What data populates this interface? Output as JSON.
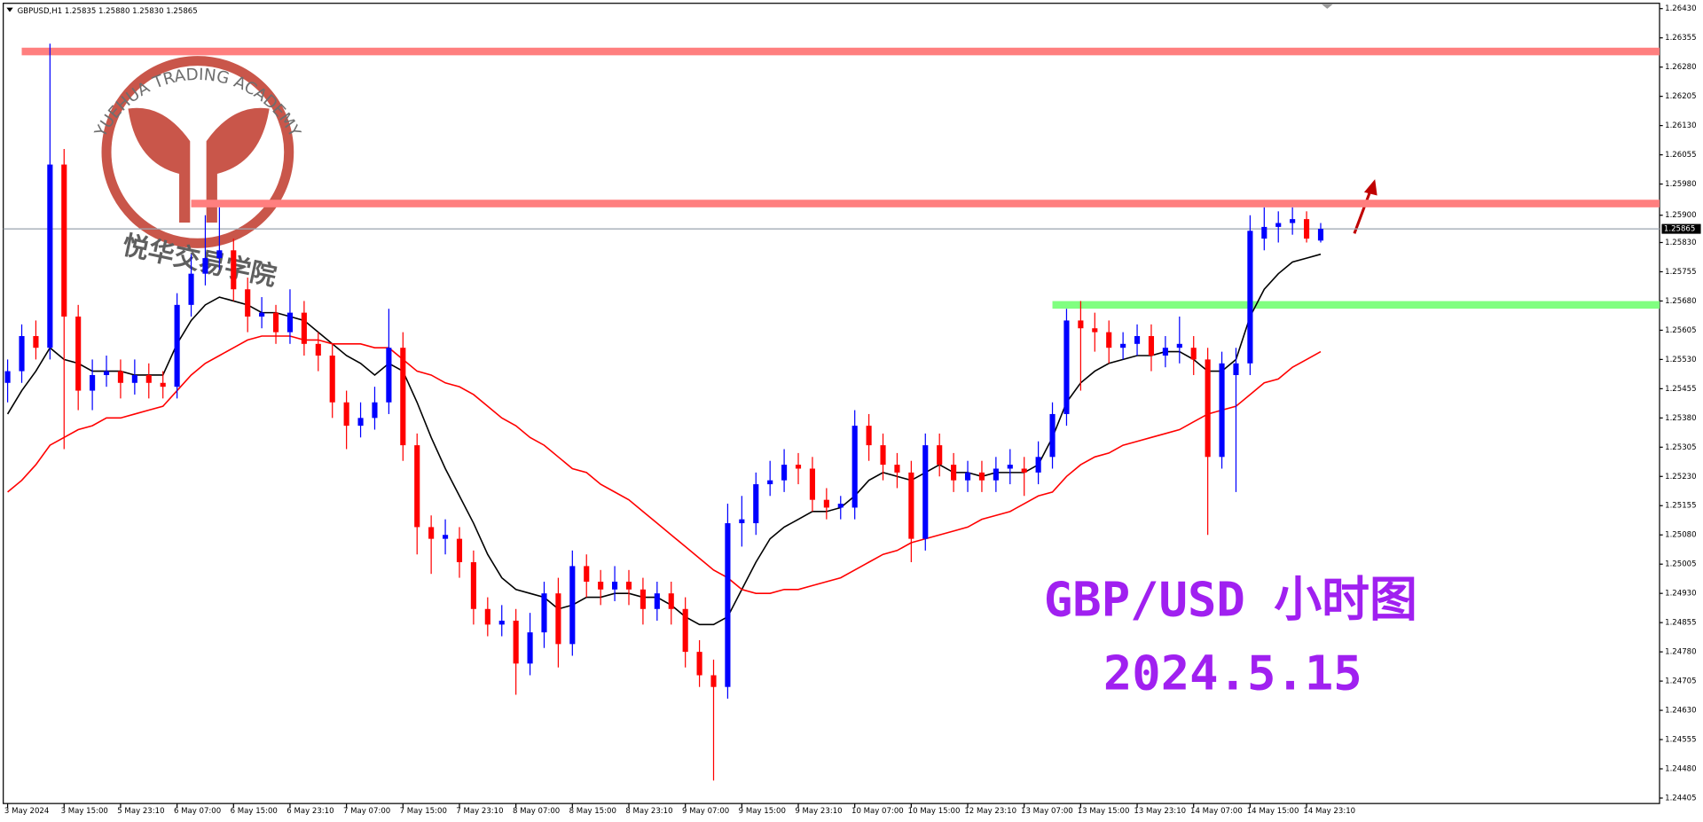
{
  "chart_data": {
    "type": "candlestick",
    "header": "GBPUSD,H1  1.25835 1.25880 1.25830 1.25865",
    "bull_color": "#0000ff",
    "bear_color": "#ff0000",
    "ohlc": [
      [
        1.2547,
        1.2553,
        1.2542,
        1.255
      ],
      [
        1.255,
        1.2562,
        1.2547,
        1.2559
      ],
      [
        1.2559,
        1.2563,
        1.2553,
        1.2556
      ],
      [
        1.2556,
        1.2634,
        1.2553,
        1.2603
      ],
      [
        1.2603,
        1.2607,
        1.253,
        1.2564
      ],
      [
        1.2564,
        1.2567,
        1.254,
        1.2545
      ],
      [
        1.2545,
        1.2553,
        1.254,
        1.2549
      ],
      [
        1.2549,
        1.2554,
        1.2546,
        1.255
      ],
      [
        1.255,
        1.2553,
        1.2543,
        1.2547
      ],
      [
        1.2547,
        1.2553,
        1.2544,
        1.2549
      ],
      [
        1.2549,
        1.2552,
        1.2543,
        1.2547
      ],
      [
        1.2547,
        1.255,
        1.2543,
        1.2546
      ],
      [
        1.2546,
        1.257,
        1.2543,
        1.2567
      ],
      [
        1.2567,
        1.258,
        1.2564,
        1.2575
      ],
      [
        1.2575,
        1.259,
        1.2572,
        1.2579
      ],
      [
        1.2579,
        1.2592,
        1.2576,
        1.2581
      ],
      [
        1.2581,
        1.2584,
        1.2568,
        1.2571
      ],
      [
        1.2571,
        1.2574,
        1.256,
        1.2564
      ],
      [
        1.2564,
        1.2569,
        1.2561,
        1.2565
      ],
      [
        1.2565,
        1.2567,
        1.2557,
        1.256
      ],
      [
        1.256,
        1.2571,
        1.2557,
        1.2565
      ],
      [
        1.2565,
        1.2568,
        1.2554,
        1.2557
      ],
      [
        1.2557,
        1.256,
        1.255,
        1.2554
      ],
      [
        1.2554,
        1.2557,
        1.2538,
        1.2542
      ],
      [
        1.2542,
        1.2545,
        1.253,
        1.2536
      ],
      [
        1.2536,
        1.2542,
        1.2533,
        1.2538
      ],
      [
        1.2538,
        1.2546,
        1.2535,
        1.2542
      ],
      [
        1.2542,
        1.2566,
        1.2539,
        1.2556
      ],
      [
        1.2556,
        1.256,
        1.2527,
        1.2531
      ],
      [
        1.2531,
        1.2534,
        1.2503,
        1.251
      ],
      [
        1.251,
        1.2513,
        1.2498,
        1.2507
      ],
      [
        1.2507,
        1.2512,
        1.2503,
        1.2508
      ],
      [
        1.2507,
        1.251,
        1.2497,
        1.2501
      ],
      [
        1.2501,
        1.2504,
        1.2485,
        1.2489
      ],
      [
        1.2489,
        1.2492,
        1.2482,
        1.2485
      ],
      [
        1.2485,
        1.249,
        1.2482,
        1.2486
      ],
      [
        1.2486,
        1.2489,
        1.2467,
        1.2475
      ],
      [
        1.2475,
        1.2488,
        1.2472,
        1.2483
      ],
      [
        1.2483,
        1.2496,
        1.2479,
        1.2493
      ],
      [
        1.2493,
        1.2497,
        1.2474,
        1.248
      ],
      [
        1.248,
        1.2504,
        1.2477,
        1.25
      ],
      [
        1.25,
        1.2503,
        1.2492,
        1.2496
      ],
      [
        1.2496,
        1.2499,
        1.249,
        1.2494
      ],
      [
        1.2494,
        1.25,
        1.2491,
        1.2496
      ],
      [
        1.2496,
        1.2499,
        1.249,
        1.2494
      ],
      [
        1.2494,
        1.2497,
        1.2485,
        1.2489
      ],
      [
        1.2489,
        1.2496,
        1.2486,
        1.2493
      ],
      [
        1.2493,
        1.2496,
        1.2485,
        1.2489
      ],
      [
        1.2489,
        1.2492,
        1.2474,
        1.2478
      ],
      [
        1.2478,
        1.2481,
        1.2469,
        1.2472
      ],
      [
        1.2472,
        1.2476,
        1.2445,
        1.2469
      ],
      [
        1.2469,
        1.2516,
        1.2466,
        1.2511
      ],
      [
        1.2511,
        1.2518,
        1.2505,
        1.2512
      ],
      [
        1.2511,
        1.2524,
        1.2508,
        1.2521
      ],
      [
        1.2521,
        1.2527,
        1.2518,
        1.2522
      ],
      [
        1.2522,
        1.253,
        1.2519,
        1.2526
      ],
      [
        1.2526,
        1.2529,
        1.2521,
        1.2525
      ],
      [
        1.2525,
        1.2528,
        1.2514,
        1.2517
      ],
      [
        1.2517,
        1.252,
        1.2512,
        1.2515
      ],
      [
        1.2515,
        1.2518,
        1.2512,
        1.2516
      ],
      [
        1.2515,
        1.254,
        1.2512,
        1.2536
      ],
      [
        1.2536,
        1.2539,
        1.2527,
        1.2531
      ],
      [
        1.2531,
        1.2534,
        1.2522,
        1.2526
      ],
      [
        1.2526,
        1.2529,
        1.252,
        1.2524
      ],
      [
        1.2524,
        1.2527,
        1.2501,
        1.2507
      ],
      [
        1.2507,
        1.2534,
        1.2504,
        1.2531
      ],
      [
        1.2531,
        1.2534,
        1.2523,
        1.2526
      ],
      [
        1.2526,
        1.2529,
        1.2519,
        1.2522
      ],
      [
        1.2522,
        1.2527,
        1.2519,
        1.2524
      ],
      [
        1.2524,
        1.2527,
        1.2519,
        1.2522
      ],
      [
        1.2522,
        1.2528,
        1.2519,
        1.2525
      ],
      [
        1.2525,
        1.253,
        1.2521,
        1.2526
      ],
      [
        1.2525,
        1.2528,
        1.2518,
        1.2524
      ],
      [
        1.2524,
        1.2532,
        1.2521,
        1.2528
      ],
      [
        1.2528,
        1.2542,
        1.2525,
        1.2539
      ],
      [
        1.2539,
        1.2566,
        1.2536,
        1.2563
      ],
      [
        1.2563,
        1.2568,
        1.2545,
        1.2561
      ],
      [
        1.2561,
        1.2565,
        1.2555,
        1.256
      ],
      [
        1.256,
        1.2563,
        1.2552,
        1.2556
      ],
      [
        1.2556,
        1.256,
        1.2553,
        1.2557
      ],
      [
        1.2557,
        1.2562,
        1.2554,
        1.2559
      ],
      [
        1.2559,
        1.2562,
        1.255,
        1.2554
      ],
      [
        1.2554,
        1.2559,
        1.2551,
        1.2556
      ],
      [
        1.2556,
        1.2564,
        1.2552,
        1.2557
      ],
      [
        1.2556,
        1.2559,
        1.2549,
        1.2553
      ],
      [
        1.2553,
        1.2556,
        1.2508,
        1.2528
      ],
      [
        1.2528,
        1.2555,
        1.2525,
        1.2552
      ],
      [
        1.2549,
        1.2556,
        1.2519,
        1.2552
      ],
      [
        1.2552,
        1.259,
        1.2549,
        1.2586
      ],
      [
        1.2584,
        1.2592,
        1.2581,
        1.2587
      ],
      [
        1.2587,
        1.2591,
        1.2583,
        1.2588
      ],
      [
        1.2588,
        1.2592,
        1.2585,
        1.2589
      ],
      [
        1.2589,
        1.2591,
        1.2583,
        1.2584
      ],
      [
        1.25835,
        1.2588,
        1.2583,
        1.25865
      ]
    ],
    "ma_fast": {
      "color": "#000000",
      "values": [
        1.2539,
        1.2545,
        1.255,
        1.2556,
        1.2553,
        1.2552,
        1.255,
        1.255,
        1.255,
        1.2549,
        1.2549,
        1.2549,
        1.2557,
        1.2563,
        1.2567,
        1.2569,
        1.2568,
        1.2567,
        1.2565,
        1.2565,
        1.2564,
        1.2563,
        1.256,
        1.2557,
        1.2554,
        1.2552,
        1.2549,
        1.2552,
        1.255,
        1.2542,
        1.2533,
        1.2525,
        1.2518,
        1.2511,
        1.2503,
        1.2497,
        1.2494,
        1.2493,
        1.2492,
        1.2489,
        1.249,
        1.2492,
        1.2492,
        1.2493,
        1.2493,
        1.2492,
        1.2492,
        1.249,
        1.2487,
        1.2485,
        1.2485,
        1.2487,
        1.2494,
        1.2501,
        1.2507,
        1.251,
        1.2512,
        1.2514,
        1.2514,
        1.2515,
        1.2518,
        1.2522,
        1.2524,
        1.2523,
        1.2522,
        1.2524,
        1.2526,
        1.2524,
        1.2524,
        1.2523,
        1.2524,
        1.2524,
        1.2524,
        1.2526,
        1.2533,
        1.2542,
        1.2547,
        1.255,
        1.2552,
        1.2553,
        1.2554,
        1.2554,
        1.2555,
        1.2555,
        1.2553,
        1.255,
        1.255,
        1.2553,
        1.2564,
        1.2571,
        1.2575,
        1.2578,
        1.2579,
        1.258
      ]
    },
    "ma_slow": {
      "color": "#ff0000",
      "values": [
        1.2519,
        1.2522,
        1.2526,
        1.2531,
        1.2533,
        1.2535,
        1.2536,
        1.2538,
        1.2538,
        1.2539,
        1.254,
        1.2541,
        1.2545,
        1.2549,
        1.2552,
        1.2554,
        1.2556,
        1.2558,
        1.2559,
        1.2559,
        1.2559,
        1.2558,
        1.2558,
        1.2557,
        1.2557,
        1.2557,
        1.2556,
        1.2556,
        1.2553,
        1.255,
        1.2549,
        1.2547,
        1.2546,
        1.2544,
        1.2541,
        1.2538,
        1.2536,
        1.2533,
        1.2531,
        1.2528,
        1.2525,
        1.2524,
        1.2521,
        1.2519,
        1.2517,
        1.2514,
        1.2511,
        1.2508,
        1.2505,
        1.2502,
        1.2499,
        1.2497,
        1.2494,
        1.2493,
        1.2493,
        1.2494,
        1.2494,
        1.2495,
        1.2496,
        1.2497,
        1.2499,
        1.2501,
        1.2503,
        1.2504,
        1.2506,
        1.2507,
        1.2508,
        1.2509,
        1.251,
        1.2512,
        1.2513,
        1.2514,
        1.2516,
        1.2518,
        1.2519,
        1.2523,
        1.2526,
        1.2528,
        1.2529,
        1.2531,
        1.2532,
        1.2533,
        1.2534,
        1.2535,
        1.2537,
        1.2539,
        1.254,
        1.2541,
        1.2544,
        1.2547,
        1.2548,
        1.2551,
        1.2553,
        1.2555
      ]
    },
    "levels": [
      {
        "value": 1.2632,
        "from": 1,
        "color": "#ff7f7f"
      },
      {
        "value": 1.2593,
        "from": 13,
        "color": "#ff7f7f"
      },
      {
        "value": 1.2567,
        "from": 74,
        "color": "#80ff80"
      }
    ],
    "current_price": {
      "value": 1.25865,
      "label": "1.25865"
    },
    "xlim": [
      -0.54,
      117
    ],
    "xticks": [
      {
        "value": 0,
        "label": "3 May 2024"
      },
      {
        "value": 4,
        "label": "3 May 15:00"
      },
      {
        "value": 8,
        "label": "5 May 23:10"
      },
      {
        "value": 12,
        "label": "6 May 07:00"
      },
      {
        "value": 16,
        "label": "6 May 15:00"
      },
      {
        "value": 20,
        "label": "6 May 23:10"
      },
      {
        "value": 24,
        "label": "7 May 07:00"
      },
      {
        "value": 28,
        "label": "7 May 15:00"
      },
      {
        "value": 32,
        "label": "7 May 23:10"
      },
      {
        "value": 36,
        "label": "8 May 07:00"
      },
      {
        "value": 40,
        "label": "8 May 15:00"
      },
      {
        "value": 44,
        "label": "8 May 23:10"
      },
      {
        "value": 48,
        "label": "9 May 07:00"
      },
      {
        "value": 52,
        "label": "9 May 15:00"
      },
      {
        "value": 56,
        "label": "9 May 23:10"
      },
      {
        "value": 60,
        "label": "10 May 07:00"
      },
      {
        "value": 64,
        "label": "10 May 15:00"
      },
      {
        "value": 68,
        "label": "12 May 23:10"
      },
      {
        "value": 72,
        "label": "13 May 07:00"
      },
      {
        "value": 76,
        "label": "13 May 15:00"
      },
      {
        "value": 80,
        "label": "13 May 23:10"
      },
      {
        "value": 84,
        "label": "14 May 07:00"
      },
      {
        "value": 88,
        "label": "14 May 15:00"
      },
      {
        "value": 92,
        "label": "14 May 23:10"
      }
    ],
    "ylim": [
      1.24391,
      1.26452
    ],
    "yticks": [
      {
        "value": 1.2643,
        "label": "1.26430"
      },
      1.26355,
      {
        "value": 1.2628,
        "label": "1.26280"
      },
      1.26205,
      {
        "value": 1.2613,
        "label": "1.26130"
      },
      1.26055,
      {
        "value": 1.2598,
        "label": "1.25980"
      },
      {
        "value": 1.259,
        "label": "1.25900"
      },
      {
        "value": 1.2583,
        "label": "1.25830"
      },
      1.25755,
      {
        "value": 1.2568,
        "label": "1.25680"
      },
      1.25605,
      {
        "value": 1.2553,
        "label": "1.25530"
      },
      1.25455,
      {
        "value": 1.2538,
        "label": "1.25380"
      },
      1.25305,
      {
        "value": 1.2523,
        "label": "1.25230"
      },
      1.25155,
      {
        "value": 1.2508,
        "label": "1.25080"
      },
      1.25005,
      {
        "value": 1.2493,
        "label": "1.24930"
      },
      1.24855,
      {
        "value": 1.2478,
        "label": "1.24780"
      },
      1.24705,
      {
        "value": 1.2463,
        "label": "1.24630"
      },
      1.24555,
      {
        "value": 1.2448,
        "label": "1.24480"
      },
      1.24405
    ],
    "grid": false,
    "annotations": [
      {
        "text": "GBP/USD 小时图",
        "color": "#a020f0"
      },
      {
        "text": "2024.5.15",
        "color": "#a020f0"
      }
    ]
  },
  "watermark": {
    "top": "YUEHUA TRADING ACADEMY",
    "bottom": "悦华交易学院"
  }
}
